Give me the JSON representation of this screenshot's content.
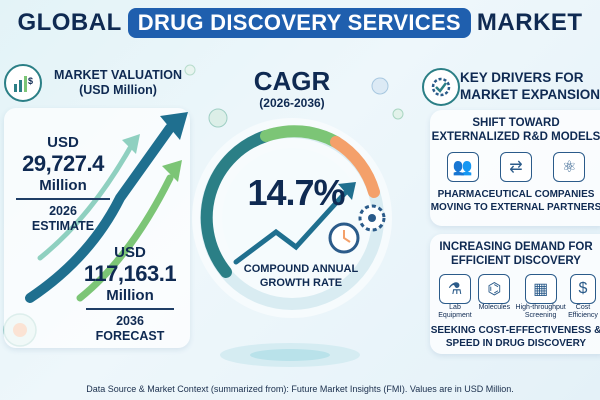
{
  "title": {
    "part1": "GLOBAL",
    "highlight": "DRUG DISCOVERY SERVICES",
    "part2": "MARKET"
  },
  "valuation": {
    "heading_line1": "MARKET VALUATION",
    "heading_line2": "(USD Million)",
    "estimate": {
      "currency": "USD",
      "value": "29,727.4",
      "unit": "Million",
      "year": "2026",
      "label": "ESTIMATE"
    },
    "forecast": {
      "currency": "USD",
      "value": "117,163.1",
      "unit": "Million",
      "year": "2036",
      "label": "FORECAST"
    }
  },
  "cagr": {
    "title": "CAGR",
    "years": "(2026-2036)",
    "value": "14.7%",
    "label_line1": "COMPOUND ANNUAL",
    "label_line2": "GROWTH RATE"
  },
  "drivers": {
    "heading_line1": "KEY DRIVERS FOR",
    "heading_line2": "MARKET EXPANSION",
    "card1": {
      "title_line1": "SHIFT TOWARD",
      "title_line2": "EXTERNALIZED R&D MODELS",
      "sub_line1": "PHARMACEUTICAL COMPANIES",
      "sub_line2": "MOVING TO EXTERNAL PARTNERS"
    },
    "card2": {
      "title_line1": "INCREASING DEMAND FOR",
      "title_line2": "EFFICIENT DISCOVERY",
      "items": [
        {
          "label1": "Lab",
          "label2": "Equipment",
          "icon": "flask-icon"
        },
        {
          "label1": "Molecules",
          "label2": "",
          "icon": "molecule-icon"
        },
        {
          "label1": "High-throughput",
          "label2": "Screening",
          "icon": "screening-icon"
        },
        {
          "label1": "Cost",
          "label2": "Efficiency",
          "icon": "cost-icon"
        }
      ],
      "sub_line1": "SEEKING COST-EFFECTIVENESS &",
      "sub_line2": "SPEED IN DRUG DISCOVERY"
    }
  },
  "footer": "Data Source & Market Context (summarized from): Future Market Insights (FMI). Values are in USD Million.",
  "colors": {
    "navy": "#0f2a52",
    "accent_blue": "#1f5fae",
    "teal": "#2b7f86",
    "green": "#7cc576",
    "orange": "#f4a06a"
  }
}
